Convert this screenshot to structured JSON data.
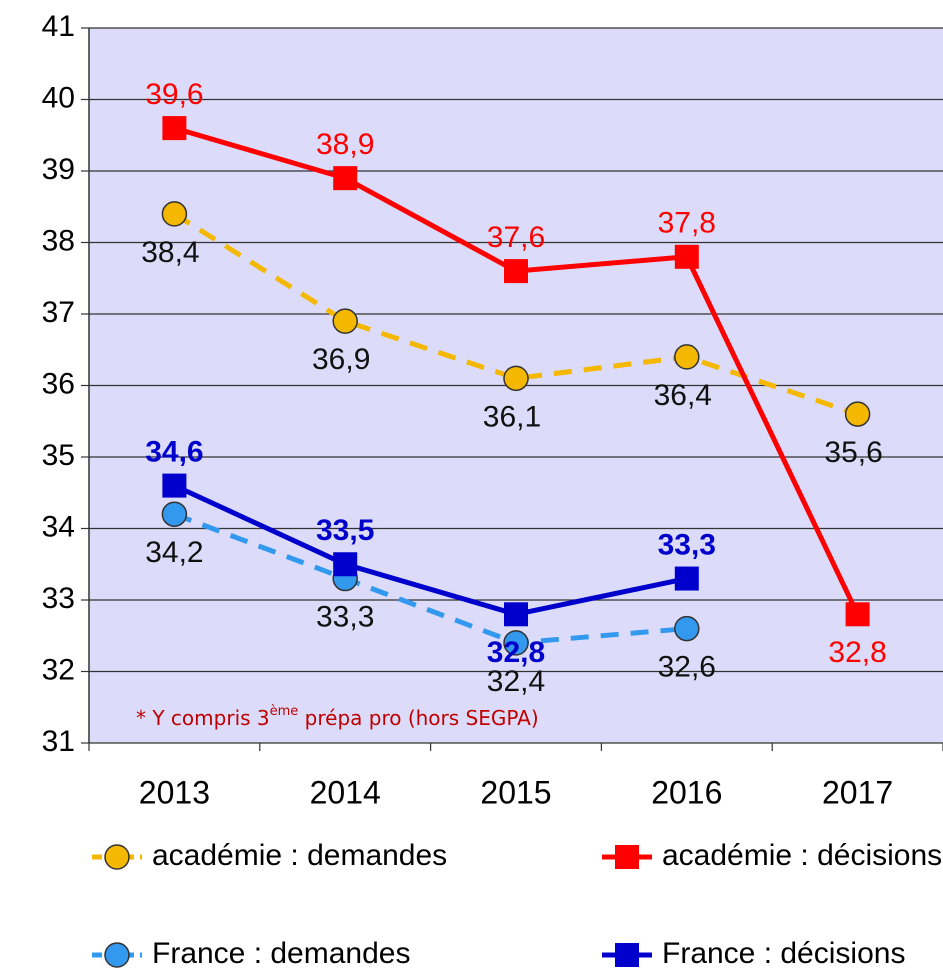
{
  "chart_data": {
    "type": "line",
    "categories": [
      "2013",
      "2014",
      "2015",
      "2016",
      "2017"
    ],
    "series": [
      {
        "name": "académie : demandes",
        "color": "#f5b800",
        "marker": "circle",
        "dashed": true,
        "values": [
          38.4,
          36.9,
          36.1,
          36.4,
          35.6
        ],
        "value_labels": [
          "38,4",
          "36,9",
          "36,1",
          "36,4",
          "35,6"
        ]
      },
      {
        "name": "académie : décisions",
        "color": "#ff0000",
        "marker": "square",
        "dashed": false,
        "values": [
          39.6,
          38.9,
          37.6,
          37.8,
          32.8
        ],
        "value_labels": [
          "39,6",
          "38,9",
          "37,6",
          "37,8",
          "32,8"
        ]
      },
      {
        "name": "France : demandes",
        "color": "#3399ee",
        "marker": "circle",
        "dashed": true,
        "values": [
          34.2,
          33.3,
          32.4,
          32.6,
          null
        ],
        "value_labels": [
          "34,2",
          "33,3",
          "32,4",
          "32,6",
          null
        ]
      },
      {
        "name": "France : décisions",
        "color": "#0000cc",
        "marker": "square",
        "dashed": false,
        "values": [
          34.6,
          33.5,
          32.8,
          33.3,
          null
        ],
        "value_labels": [
          "34,6",
          "33,5",
          "32,8",
          "33,3",
          null
        ]
      }
    ],
    "ylim": [
      31,
      41
    ],
    "yticks": [
      31,
      32,
      33,
      34,
      35,
      36,
      37,
      38,
      39,
      40,
      41
    ],
    "grid": true,
    "annotation": {
      "before": "*  Y compris 3",
      "sup": "ème",
      "after": " prépa pro (hors SEGPA)"
    }
  }
}
